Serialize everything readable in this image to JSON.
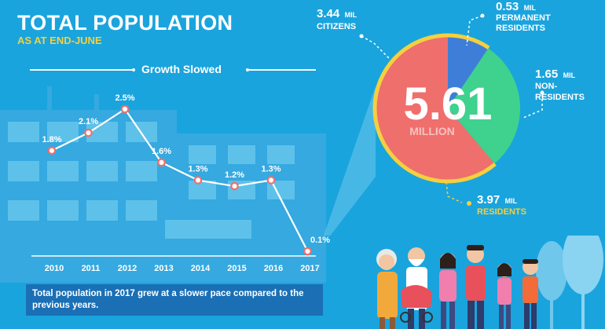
{
  "header": {
    "title": "TOTAL POPULATION",
    "subtitle": "AS AT END-JUNE"
  },
  "chart_data": [
    {
      "type": "line",
      "title": "Growth Slowed",
      "categories": [
        "2010",
        "2011",
        "2012",
        "2013",
        "2014",
        "2015",
        "2016",
        "2017"
      ],
      "series": [
        {
          "values": [
            1.8,
            2.1,
            2.5,
            1.6,
            1.3,
            1.2,
            1.3,
            0.1
          ],
          "labels": [
            "1.8%",
            "2.1%",
            "2.5%",
            "1.6%",
            "1.3%",
            "1.2%",
            "1.3%",
            "0.1%"
          ]
        }
      ],
      "ylim": [
        0,
        2.7
      ],
      "grid": false,
      "colors": {
        "line": "#ffffff",
        "point_fill": "#ffffff",
        "point_stroke": "#ef6f6c",
        "axis": "#ffffff"
      }
    },
    {
      "type": "pie",
      "center_value": "5.61",
      "center_unit": "MILLION",
      "slices": [
        {
          "value": 3.44,
          "number": "3.44",
          "unit": "MIL",
          "label": "CITIZENS",
          "color": "#ef6f6c"
        },
        {
          "value": 0.53,
          "number": "0.53",
          "unit": "MIL",
          "label_lines": [
            "PERMANENT",
            "RESIDENTS"
          ],
          "color": "#3e7ed8"
        },
        {
          "value": 1.65,
          "number": "1.65",
          "unit": "MIL",
          "label_lines": [
            "NON-",
            "RESIDENTS"
          ],
          "color": "#3fd18e"
        }
      ],
      "residents_group": {
        "number": "3.97",
        "unit": "MIL",
        "label": "RESIDENTS",
        "color": "#f4d03f"
      }
    }
  ],
  "footer": {
    "caption": "Total population in 2017 grew at a slower pace compared to the previous years."
  },
  "theme": {
    "background": "#1aa4dd",
    "accent_yellow": "#f4d03f",
    "caption_bg": "#1a6fb5",
    "building": "#4fb7e6"
  },
  "illustrations": [
    "building-illustration",
    "family-illustration",
    "trees-illustration"
  ]
}
